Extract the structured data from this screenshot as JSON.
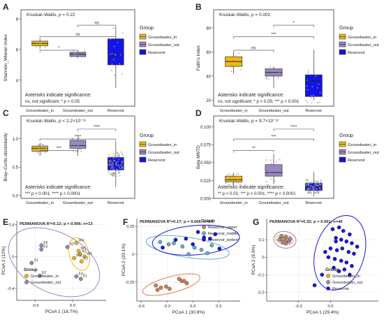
{
  "chart_data": [
    {
      "panel": "A",
      "type": "boxplot",
      "stat": "Kruskal–Wallis, p = 0.22",
      "ylabel": "Shannon_Wiener index",
      "ylim": [
        2.3,
        8.6
      ],
      "yticks": [
        "4",
        "6",
        "8"
      ],
      "categories": [
        "Groundwater_in",
        "Groundwater_out",
        "Reservoir"
      ],
      "boxes": [
        {
          "q1": 6.25,
          "median": 6.4,
          "q3": 6.55,
          "low": 6.05,
          "high": 6.7
        },
        {
          "q1": 5.55,
          "median": 5.7,
          "q3": 5.82,
          "low": 5.45,
          "high": 5.9
        },
        {
          "q1": 5.0,
          "median": 5.6,
          "q3": 6.7,
          "low": 3.5,
          "high": 7.5
        }
      ],
      "brackets": [
        {
          "from": 0,
          "to": 1,
          "label": "*"
        },
        {
          "from": 0,
          "to": 2,
          "label": "ns"
        },
        {
          "from": 1,
          "to": 2,
          "label": "ns"
        }
      ],
      "note": [
        "Asterisks indicate significance:",
        "ns, not significant; * p < 0.05"
      ],
      "legend_title": "Group",
      "legend": [
        "Groundwater_in",
        "Groundwater_out",
        "Reservoir"
      ]
    },
    {
      "panel": "B",
      "type": "boxplot",
      "stat": "Kruskal–Wallis, p = 0.002",
      "ylabel": "Faith's index",
      "ylim": [
        15,
        95
      ],
      "yticks": [
        "20",
        "40",
        "60",
        "80"
      ],
      "categories": [
        "Groundwater_in",
        "Groundwater_out",
        "Reservoir"
      ],
      "boxes": [
        {
          "q1": 48,
          "median": 52,
          "q3": 56,
          "low": 42,
          "high": 60
        },
        {
          "q1": 40,
          "median": 43,
          "q3": 46,
          "low": 30,
          "high": 48
        },
        {
          "q1": 23,
          "median": 36,
          "q3": 41,
          "low": 20,
          "high": 62
        }
      ],
      "brackets": [
        {
          "from": 0,
          "to": 1,
          "label": "ns"
        },
        {
          "from": 0,
          "to": 2,
          "label": "***"
        },
        {
          "from": 1,
          "to": 2,
          "label": "*"
        }
      ],
      "note": [
        "Asterisks indicate significance:",
        "ns, not significant; * p < 0.05;  *** p < 0.001"
      ],
      "legend_title": "Group",
      "legend": [
        "Groundwater_in",
        "Groundwater_out",
        "Reservoir"
      ]
    },
    {
      "panel": "C",
      "type": "boxplot",
      "stat": "Kruskal–Wallis, p < 2.2×10⁻¹⁶",
      "ylabel": "Bray–Curtis dissimilarity",
      "ylim": [
        -0.05,
        1.4
      ],
      "yticks": [
        "0.0",
        "0.5",
        "1.0"
      ],
      "categories": [
        "Groundwater_in",
        "Groundwater_out",
        "Reservoir"
      ],
      "boxes": [
        {
          "q1": 0.78,
          "median": 0.83,
          "q3": 0.87,
          "low": 0.7,
          "high": 0.92
        },
        {
          "q1": 0.83,
          "median": 0.88,
          "q3": 0.97,
          "low": 0.7,
          "high": 1.02
        },
        {
          "q1": 0.45,
          "median": 0.57,
          "q3": 0.67,
          "low": 0.15,
          "high": 0.95
        }
      ],
      "brackets": [
        {
          "from": 0,
          "to": 1,
          "label": "***"
        },
        {
          "from": 0,
          "to": 2,
          "label": "****"
        },
        {
          "from": 1,
          "to": 2,
          "label": "****"
        }
      ],
      "note": [
        "Asterisks indicate significance:",
        "*** p < 0.001; **** p < 0.0001"
      ],
      "legend_title": "Group",
      "legend": [
        "Groundwater_in",
        "Groundwater_out",
        "Reservoir"
      ]
    },
    {
      "panel": "D",
      "type": "boxplot",
      "stat": "Kruskal–Wallis, p = 9.7×10⁻¹²",
      "ylabel": "Beta MNTD",
      "ylim": [
        0.0,
        0.115
      ],
      "yticks": [
        "0.000",
        "0.025",
        "0.050",
        "0.075",
        "0.100"
      ],
      "categories": [
        "Groundwater_in",
        "Groundwater_out",
        "Reservoir"
      ],
      "boxes": [
        {
          "q1": 0.023,
          "median": 0.026,
          "q3": 0.031,
          "low": 0.018,
          "high": 0.036
        },
        {
          "q1": 0.031,
          "median": 0.036,
          "q3": 0.047,
          "low": 0.02,
          "high": 0.062
        },
        {
          "q1": 0.011,
          "median": 0.016,
          "q3": 0.021,
          "low": 0.003,
          "high": 0.037
        }
      ],
      "brackets": [
        {
          "from": 0,
          "to": 1,
          "label": "**"
        },
        {
          "from": 0,
          "to": 2,
          "label": "***"
        },
        {
          "from": 1,
          "to": 2,
          "label": "****"
        }
      ],
      "note": [
        "Asterisks indicate significance:",
        "** p < 0.01; *** p < 0.001; **** p < 0.0001"
      ],
      "legend_title": "Group",
      "legend": [
        "Groundwater_in",
        "Groundwater_out",
        "Reservoir"
      ]
    },
    {
      "panel": "E",
      "type": "scatter",
      "stat": "PERMANOVA R²=0.12; p = 0.006; n=13",
      "xlabel": "PCoA 1 (16.7%)",
      "ylabel": "PCoA 2 (12%)",
      "xlim": [
        -0.75,
        0.45
      ],
      "ylim": [
        -0.55,
        0.45
      ],
      "xticks": [
        -0.5,
        0.0
      ],
      "yticks": [
        -0.4,
        0.0,
        0.4
      ],
      "series": [
        {
          "name": "Groundwater_in",
          "points": [
            {
              "x": 0.05,
              "y": 0.17,
              "label": "W4"
            },
            {
              "x": 0.08,
              "y": 0.07,
              "label": "W5"
            },
            {
              "x": 0.1,
              "y": 0.03,
              "label": "N1"
            },
            {
              "x": 0.16,
              "y": 0.0,
              "label": "W1"
            },
            {
              "x": 0.02,
              "y": -0.02,
              "label": "W2"
            },
            {
              "x": 0.12,
              "y": -0.06,
              "label": "E3"
            }
          ]
        },
        {
          "name": "Groundwater_out",
          "points": [
            {
              "x": -0.42,
              "y": 0.14,
              "label": "E6"
            },
            {
              "x": -0.42,
              "y": 0.09,
              "label": "E5"
            },
            {
              "x": -0.07,
              "y": 0.12,
              "label": "S2"
            },
            {
              "x": -0.55,
              "y": -0.08,
              "label": "S1"
            },
            {
              "x": -0.44,
              "y": -0.24,
              "label": "E2"
            },
            {
              "x": 0.05,
              "y": -0.25,
              "label": "E4"
            },
            {
              "x": 0.11,
              "y": -0.28,
              "label": "E1"
            }
          ]
        }
      ],
      "legend_title": "Group",
      "legend": [
        "Groundwater_in",
        "Groundwater_out"
      ]
    },
    {
      "panel": "F",
      "type": "scatter",
      "stat": "PERMANOVA R²=0.17; p = 0.006; n=27",
      "xlabel": "PCoA 1 (30.8%)",
      "ylabel": "PCoA 2 (20.1%)",
      "xlim": [
        -0.65,
        0.55
      ],
      "ylim": [
        -0.42,
        0.32
      ],
      "xticks": [
        -0.6,
        -0.3,
        0.0,
        0.3
      ],
      "yticks": [
        -0.25,
        0.0,
        0.25
      ],
      "series": [
        {
          "name": "Reservoir_upper",
          "points": [
            {
              "x": -0.43,
              "y": -0.28
            },
            {
              "x": -0.41,
              "y": -0.32
            },
            {
              "x": -0.37,
              "y": -0.3
            },
            {
              "x": -0.31,
              "y": -0.29
            },
            {
              "x": -0.27,
              "y": -0.31
            },
            {
              "x": -0.16,
              "y": -0.22
            },
            {
              "x": -0.13,
              "y": -0.24
            },
            {
              "x": -0.1,
              "y": -0.24
            },
            {
              "x": -0.07,
              "y": -0.26
            }
          ]
        },
        {
          "name": "Reservoir_middle",
          "points": [
            {
              "x": -0.38,
              "y": 0.11
            },
            {
              "x": -0.28,
              "y": 0.09
            },
            {
              "x": -0.22,
              "y": 0.1
            },
            {
              "x": -0.12,
              "y": 0.07
            },
            {
              "x": -0.05,
              "y": 0.0
            },
            {
              "x": 0.02,
              "y": 0.06
            },
            {
              "x": 0.1,
              "y": 0.04
            },
            {
              "x": 0.17,
              "y": 0.01
            },
            {
              "x": 0.22,
              "y": 0.08
            }
          ]
        },
        {
          "name": "Reservoir_bottom",
          "points": [
            {
              "x": -0.35,
              "y": 0.06
            },
            {
              "x": -0.2,
              "y": 0.13
            },
            {
              "x": -0.08,
              "y": 0.14
            },
            {
              "x": 0.0,
              "y": 0.09
            },
            {
              "x": 0.06,
              "y": 0.2
            },
            {
              "x": 0.13,
              "y": 0.15
            },
            {
              "x": 0.2,
              "y": 0.14
            },
            {
              "x": 0.26,
              "y": 0.18
            },
            {
              "x": 0.31,
              "y": 0.05
            }
          ]
        }
      ],
      "legend_title": "Group",
      "legend": [
        "Reservoir_upper",
        "Reservoir_middle",
        "Reservoir_bottom"
      ]
    },
    {
      "panel": "G",
      "type": "scatter",
      "stat": "PERMANOVA R²=0.32; p = 0.001; n=40",
      "xlabel": "PCoA 1 (29.4%)",
      "ylabel": "PCoA 2 (9.9%)",
      "xlim": [
        -0.6,
        0.45
      ],
      "ylim": [
        -0.25,
        0.22
      ],
      "xticks": [
        -0.3,
        0.0
      ],
      "yticks": [
        -0.2,
        -0.1,
        0.0,
        0.1
      ],
      "series": [
        {
          "name": "Groundwater_in",
          "points": [
            {
              "x": -0.47,
              "y": 0.11
            },
            {
              "x": -0.45,
              "y": 0.1
            },
            {
              "x": -0.43,
              "y": 0.105
            },
            {
              "x": -0.41,
              "y": 0.095
            },
            {
              "x": -0.44,
              "y": 0.09
            },
            {
              "x": -0.4,
              "y": 0.1
            }
          ]
        },
        {
          "name": "Groundwater_out",
          "points": [
            {
              "x": -0.48,
              "y": 0.1
            },
            {
              "x": -0.46,
              "y": 0.12
            },
            {
              "x": -0.42,
              "y": 0.115
            },
            {
              "x": -0.39,
              "y": 0.09
            },
            {
              "x": -0.45,
              "y": 0.085
            },
            {
              "x": -0.42,
              "y": 0.08
            },
            {
              "x": -0.38,
              "y": 0.105
            }
          ]
        },
        {
          "name": "Reservoir",
          "points": [
            {
              "x": 0.02,
              "y": 0.16
            },
            {
              "x": 0.08,
              "y": 0.17
            },
            {
              "x": 0.12,
              "y": 0.15
            },
            {
              "x": 0.18,
              "y": 0.13
            },
            {
              "x": 0.05,
              "y": 0.11
            },
            {
              "x": 0.1,
              "y": 0.1
            },
            {
              "x": 0.15,
              "y": 0.09
            },
            {
              "x": 0.2,
              "y": 0.08
            },
            {
              "x": 0.0,
              "y": 0.05
            },
            {
              "x": 0.06,
              "y": 0.04
            },
            {
              "x": 0.11,
              "y": 0.05
            },
            {
              "x": 0.17,
              "y": 0.03
            },
            {
              "x": 0.22,
              "y": 0.02
            },
            {
              "x": -0.02,
              "y": 0.0
            },
            {
              "x": 0.04,
              "y": -0.01
            },
            {
              "x": 0.1,
              "y": -0.02
            },
            {
              "x": 0.15,
              "y": -0.03
            },
            {
              "x": 0.2,
              "y": -0.05
            },
            {
              "x": 0.03,
              "y": -0.06
            },
            {
              "x": 0.08,
              "y": -0.08
            },
            {
              "x": 0.13,
              "y": -0.07
            },
            {
              "x": -0.08,
              "y": -0.1
            },
            {
              "x": -0.15,
              "y": -0.16
            },
            {
              "x": 0.25,
              "y": 0.06
            },
            {
              "x": 0.05,
              "y": 0.09
            },
            {
              "x": 0.18,
              "y": -0.1
            },
            {
              "x": -0.05,
              "y": 0.03
            }
          ]
        }
      ],
      "legend_title": "Group",
      "legend": [
        "Groundwater_in",
        "Groundwater_out",
        "Reservoir"
      ]
    }
  ],
  "panel_letters": [
    "A",
    "B",
    "C",
    "D",
    "E",
    "F",
    "G"
  ],
  "colors": {
    "groundwater_in": "#f2b90f",
    "groundwater_out": "#9b85c4",
    "reservoir": "#1414e6",
    "reservoir_upper": "#e07a4a",
    "reservoir_middle": "#5aaee0",
    "reservoir_bottom": "#1414e6",
    "points": "#9a9a9a"
  }
}
